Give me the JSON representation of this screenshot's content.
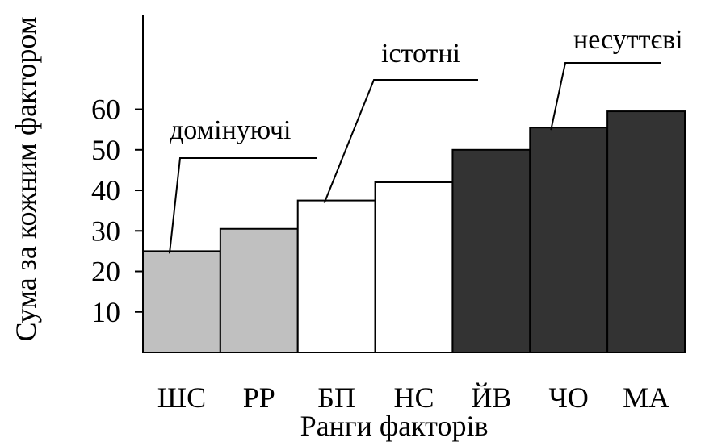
{
  "chart_data": {
    "type": "bar",
    "title": "",
    "xlabel": "Ранги факторів",
    "ylabel": "Сума за кожним фактором",
    "categories": [
      "ШС",
      "РР",
      "БП",
      "НС",
      "ЙВ",
      "ЧО",
      "МА"
    ],
    "values": [
      25,
      30.5,
      37.5,
      42,
      50,
      55.5,
      59.5
    ],
    "groups": [
      "домінуючі",
      "домінуючі",
      "істотні",
      "істотні",
      "несуттєві",
      "несуттєві",
      "несуттєві"
    ],
    "yticks": [
      10,
      20,
      30,
      40,
      50,
      60
    ],
    "ylim": [
      0,
      83
    ],
    "grid": false,
    "colors": {
      "домінуючі": "#c0c0c0",
      "істотні": "#ffffff",
      "несуттєві": "#333333",
      "stroke": "#000000"
    },
    "annotations": [
      {
        "text": "домінуючі",
        "target_category": "ШС",
        "target_value": 25
      },
      {
        "text": "істотні",
        "target_category": "БП",
        "target_value": 37.5
      },
      {
        "text": "несуттєві",
        "target_category": "ЧО",
        "target_value": 55.5
      }
    ]
  }
}
